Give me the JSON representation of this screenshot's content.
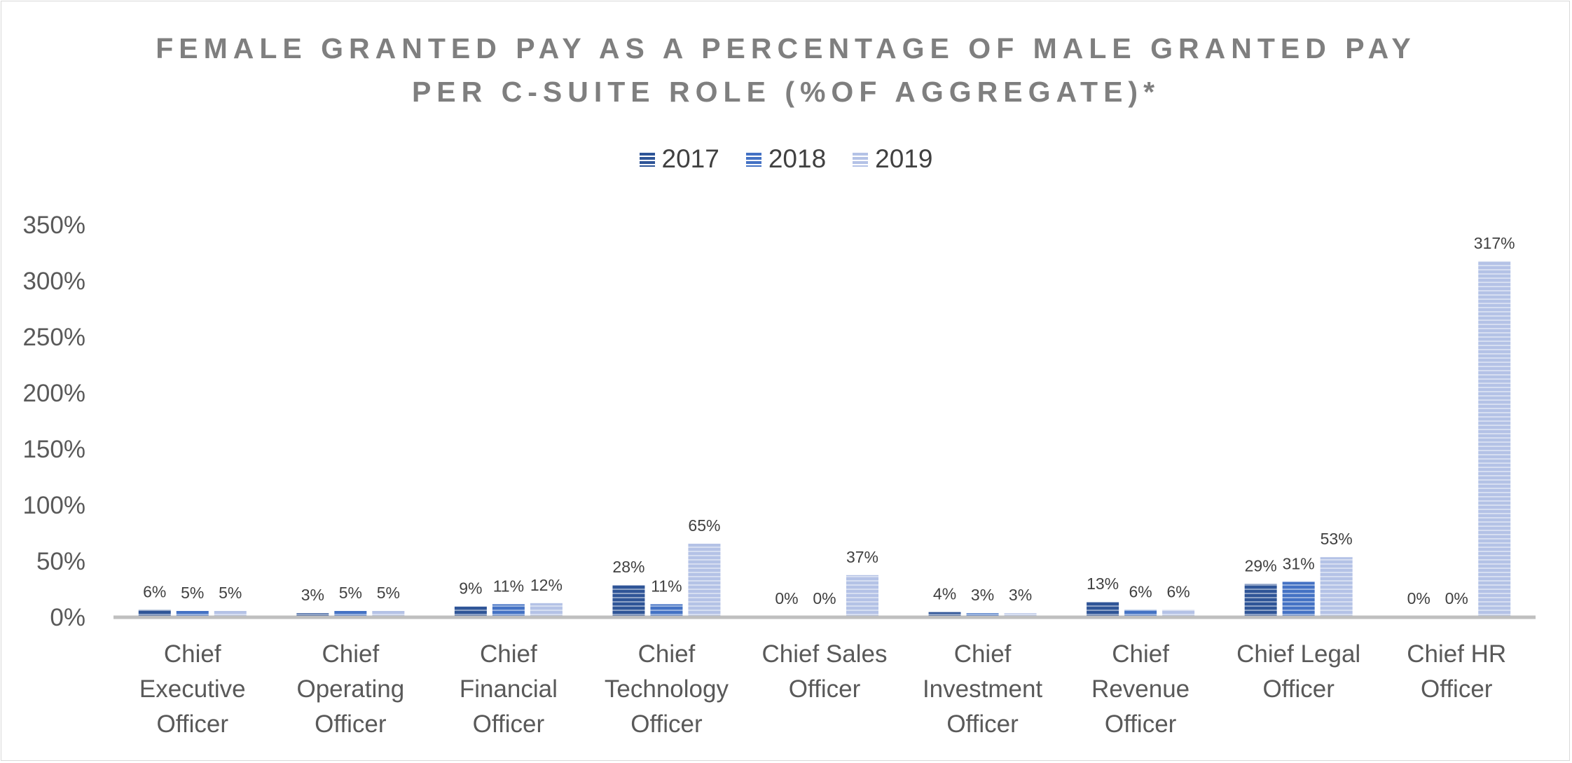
{
  "chart_data": {
    "type": "bar",
    "title_lines": [
      "FEMALE GRANTED PAY AS A PERCENTAGE OF MALE GRANTED PAY",
      "PER C-SUITE ROLE (%OF AGGREGATE)*"
    ],
    "categories": [
      [
        "Chief",
        "Executive",
        "Officer"
      ],
      [
        "Chief",
        "Operating",
        "Officer"
      ],
      [
        "Chief",
        "Financial",
        "Officer"
      ],
      [
        "Chief",
        "Technology",
        "Officer"
      ],
      [
        "Chief Sales",
        "Officer"
      ],
      [
        "Chief",
        "Investment",
        "Officer"
      ],
      [
        "Chief",
        "Revenue",
        "Officer"
      ],
      [
        "Chief Legal",
        "Officer"
      ],
      [
        "Chief HR",
        "Officer"
      ]
    ],
    "series": [
      {
        "name": "2017",
        "color": "#2f5597",
        "values": [
          6,
          3,
          9,
          28,
          0,
          4,
          13,
          29,
          0
        ],
        "labels": [
          "6%",
          "3%",
          "9%",
          "28%",
          "0%",
          "4%",
          "13%",
          "29%",
          "0%"
        ]
      },
      {
        "name": "2018",
        "color": "#4472c4",
        "values": [
          5,
          5,
          11,
          11,
          0,
          3,
          6,
          31,
          0
        ],
        "labels": [
          "5%",
          "5%",
          "11%",
          "11%",
          "0%",
          "3%",
          "6%",
          "31%",
          "0%"
        ]
      },
      {
        "name": "2019",
        "color": "#b4c2e6",
        "values": [
          5,
          5,
          12,
          65,
          37,
          3,
          6,
          53,
          317
        ],
        "labels": [
          "5%",
          "5%",
          "12%",
          "65%",
          "37%",
          "3%",
          "6%",
          "53%",
          "317%"
        ]
      }
    ],
    "y_ticks": [
      {
        "value": 0,
        "label": "0%"
      },
      {
        "value": 50,
        "label": "50%"
      },
      {
        "value": 100,
        "label": "100%"
      },
      {
        "value": 150,
        "label": "150%"
      },
      {
        "value": 200,
        "label": "200%"
      },
      {
        "value": 250,
        "label": "250%"
      },
      {
        "value": 300,
        "label": "300%"
      },
      {
        "value": 350,
        "label": "350%"
      }
    ],
    "ylim": [
      0,
      350
    ],
    "grid": false,
    "legend_position": "top"
  }
}
